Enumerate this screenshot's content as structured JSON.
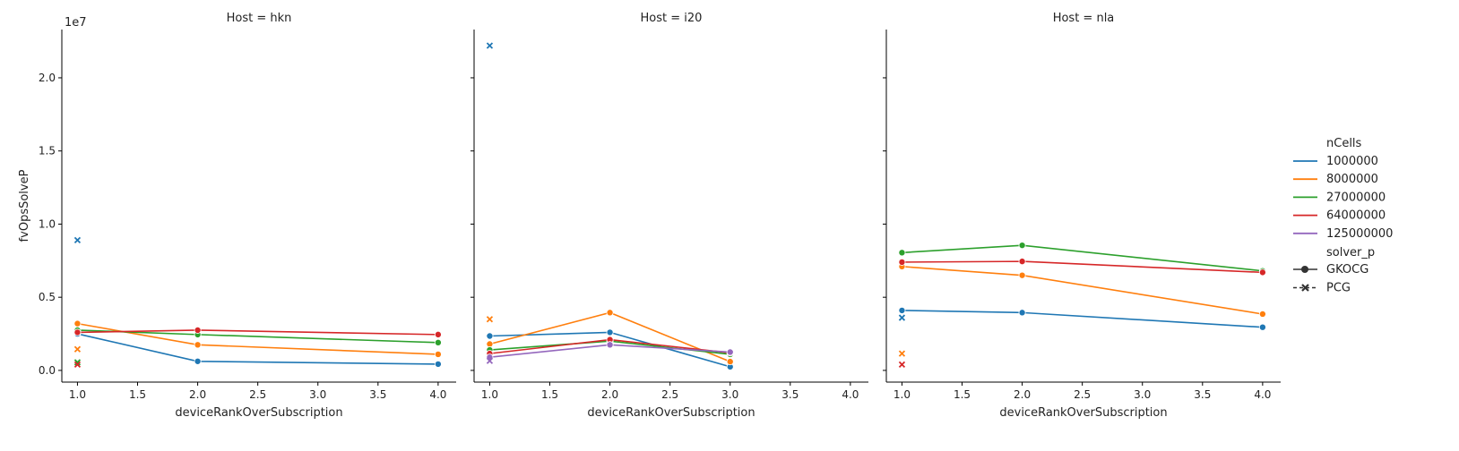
{
  "figure": {
    "ylabel": "fvOpsSolveP",
    "y_offset_label": "1e7"
  },
  "legend": {
    "hue_title": "nCells",
    "style_title": "solver_p",
    "hue_entries": [
      {
        "label": "1000000",
        "color": "#1f77b4"
      },
      {
        "label": "8000000",
        "color": "#ff7f0e"
      },
      {
        "label": "27000000",
        "color": "#2ca02c"
      },
      {
        "label": "64000000",
        "color": "#d62728"
      },
      {
        "label": "125000000",
        "color": "#9467bd"
      }
    ],
    "style_entries": [
      {
        "label": "GKOCG",
        "marker": "circle"
      },
      {
        "label": "PCG",
        "marker": "x"
      }
    ]
  },
  "chart_data": [
    {
      "type": "line",
      "title": "Host = hkn",
      "xlabel": "deviceRankOverSubscription",
      "ylabel": "fvOpsSolveP",
      "xlim": [
        0.87,
        4.15
      ],
      "ylim": [
        -0.08,
        2.33
      ],
      "y_scale_note": "values in units of 1e7",
      "xticks": [
        "1.0",
        "1.5",
        "2.0",
        "2.5",
        "3.0",
        "3.5",
        "4.0"
      ],
      "yticks": [
        "0.0",
        "0.5",
        "1.0",
        "1.5",
        "2.0"
      ],
      "series": [
        {
          "name": "1000000",
          "solver": "GKOCG",
          "color": "#1f77b4",
          "x": [
            1,
            2,
            4
          ],
          "y": [
            0.25,
            0.062,
            0.043
          ]
        },
        {
          "name": "8000000",
          "solver": "GKOCG",
          "color": "#ff7f0e",
          "x": [
            1,
            2,
            4
          ],
          "y": [
            0.32,
            0.175,
            0.11
          ]
        },
        {
          "name": "27000000",
          "solver": "GKOCG",
          "color": "#2ca02c",
          "x": [
            1,
            2,
            4
          ],
          "y": [
            0.275,
            0.245,
            0.19
          ]
        },
        {
          "name": "64000000",
          "solver": "GKOCG",
          "color": "#d62728",
          "x": [
            1,
            2,
            4
          ],
          "y": [
            0.26,
            0.275,
            0.245
          ]
        },
        {
          "name": "1000000",
          "solver": "PCG",
          "color": "#1f77b4",
          "x": [
            1
          ],
          "y": [
            0.89
          ]
        },
        {
          "name": "8000000",
          "solver": "PCG",
          "color": "#ff7f0e",
          "x": [
            1
          ],
          "y": [
            0.145
          ]
        },
        {
          "name": "27000000",
          "solver": "PCG",
          "color": "#2ca02c",
          "x": [
            1
          ],
          "y": [
            0.055
          ]
        },
        {
          "name": "64000000",
          "solver": "PCG",
          "color": "#d62728",
          "x": [
            1
          ],
          "y": [
            0.04
          ]
        }
      ]
    },
    {
      "type": "line",
      "title": "Host = i20",
      "xlabel": "deviceRankOverSubscription",
      "ylabel": "",
      "xlim": [
        0.87,
        4.15
      ],
      "ylim": [
        -0.08,
        2.33
      ],
      "y_scale_note": "values in units of 1e7",
      "xticks": [
        "1.0",
        "1.5",
        "2.0",
        "2.5",
        "3.0",
        "3.5",
        "4.0"
      ],
      "yticks": [],
      "series": [
        {
          "name": "1000000",
          "solver": "GKOCG",
          "color": "#1f77b4",
          "x": [
            1,
            2,
            3
          ],
          "y": [
            0.235,
            0.26,
            0.025
          ]
        },
        {
          "name": "8000000",
          "solver": "GKOCG",
          "color": "#ff7f0e",
          "x": [
            1,
            2,
            3
          ],
          "y": [
            0.18,
            0.395,
            0.06
          ]
        },
        {
          "name": "27000000",
          "solver": "GKOCG",
          "color": "#2ca02c",
          "x": [
            1,
            2,
            3
          ],
          "y": [
            0.14,
            0.2,
            0.11
          ]
        },
        {
          "name": "64000000",
          "solver": "GKOCG",
          "color": "#d62728",
          "x": [
            1,
            2,
            3
          ],
          "y": [
            0.115,
            0.21,
            0.12
          ]
        },
        {
          "name": "125000000",
          "solver": "GKOCG",
          "color": "#9467bd",
          "x": [
            1,
            2,
            3
          ],
          "y": [
            0.09,
            0.175,
            0.125
          ]
        },
        {
          "name": "1000000",
          "solver": "PCG",
          "color": "#1f77b4",
          "x": [
            1
          ],
          "y": [
            2.22
          ]
        },
        {
          "name": "8000000",
          "solver": "PCG",
          "color": "#ff7f0e",
          "x": [
            1
          ],
          "y": [
            0.35
          ]
        },
        {
          "name": "125000000",
          "solver": "PCG",
          "color": "#9467bd",
          "x": [
            1
          ],
          "y": [
            0.065
          ]
        }
      ]
    },
    {
      "type": "line",
      "title": "Host = nla",
      "xlabel": "deviceRankOverSubscription",
      "ylabel": "",
      "xlim": [
        0.87,
        4.15
      ],
      "ylim": [
        -0.08,
        2.33
      ],
      "y_scale_note": "values in units of 1e7",
      "xticks": [
        "1.0",
        "1.5",
        "2.0",
        "2.5",
        "3.0",
        "3.5",
        "4.0"
      ],
      "yticks": [],
      "series": [
        {
          "name": "1000000",
          "solver": "GKOCG",
          "color": "#1f77b4",
          "x": [
            1,
            2,
            4
          ],
          "y": [
            0.41,
            0.395,
            0.295
          ]
        },
        {
          "name": "8000000",
          "solver": "GKOCG",
          "color": "#ff7f0e",
          "x": [
            1,
            2,
            4
          ],
          "y": [
            0.71,
            0.65,
            0.385
          ]
        },
        {
          "name": "27000000",
          "solver": "GKOCG",
          "color": "#2ca02c",
          "x": [
            1,
            2,
            4
          ],
          "y": [
            0.805,
            0.855,
            0.68
          ]
        },
        {
          "name": "64000000",
          "solver": "GKOCG",
          "color": "#d62728",
          "x": [
            1,
            2,
            4
          ],
          "y": [
            0.74,
            0.745,
            0.67
          ]
        },
        {
          "name": "1000000",
          "solver": "PCG",
          "color": "#1f77b4",
          "x": [
            1
          ],
          "y": [
            0.36
          ]
        },
        {
          "name": "8000000",
          "solver": "PCG",
          "color": "#ff7f0e",
          "x": [
            1
          ],
          "y": [
            0.115
          ]
        },
        {
          "name": "64000000",
          "solver": "PCG",
          "color": "#d62728",
          "x": [
            1
          ],
          "y": [
            0.04
          ]
        }
      ]
    }
  ]
}
